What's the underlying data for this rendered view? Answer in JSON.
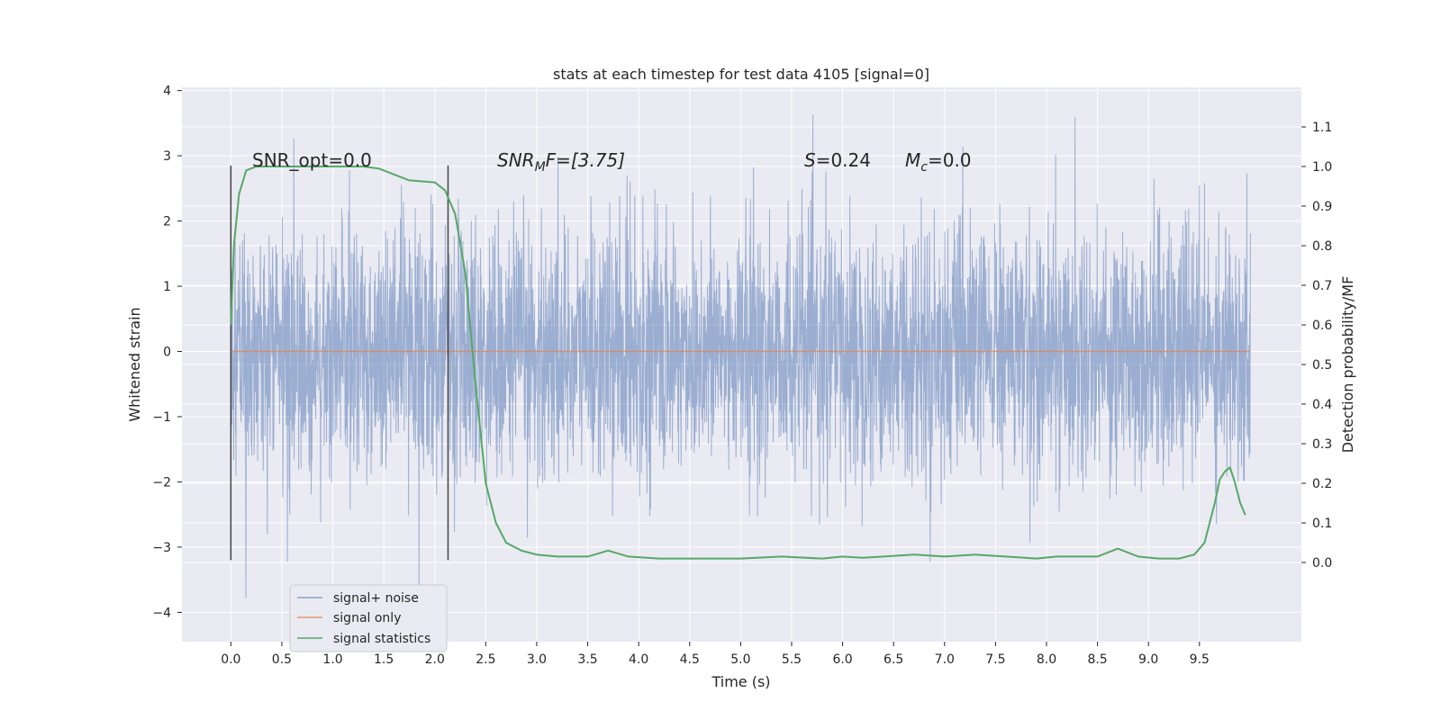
{
  "chart_data": {
    "type": "line",
    "title": "stats at each timestep for test data 4105 [signal=0]",
    "xlabel": "Time (s)",
    "ylabel_left": "Whitened strain",
    "ylabel_right": "Detection probability/MF",
    "xlim": [
      -0.48,
      10.5
    ],
    "ylim_left": [
      -4.45,
      4.05
    ],
    "ylim_right": [
      -0.2,
      1.2
    ],
    "x_ticks": [
      "0.0",
      "0.5",
      "1.0",
      "1.5",
      "2.0",
      "2.5",
      "3.0",
      "3.5",
      "4.0",
      "4.5",
      "5.0",
      "5.5",
      "6.0",
      "6.5",
      "7.0",
      "7.5",
      "8.0",
      "8.5",
      "9.0",
      "9.5"
    ],
    "y_left_ticks": [
      "4",
      "3",
      "2",
      "1",
      "0",
      "−1",
      "−2",
      "−3",
      "−4"
    ],
    "y_right_ticks": [
      "1.1",
      "1.0",
      "0.9",
      "0.8",
      "0.7",
      "0.6",
      "0.5",
      "0.4",
      "0.3",
      "0.2",
      "0.1",
      "0.0"
    ],
    "grid": true,
    "legend_position": "lower-left",
    "colors": {
      "background": "#eaeaf2",
      "grid": "#ffffff",
      "signal_noise": "#4c72b0",
      "signal_only": "#dd8452",
      "signal_statistics": "#55a868",
      "vlines": "#444444"
    },
    "annotations": {
      "snr_opt": "SNR_opt=0.0",
      "snr_mf_var": "SNR",
      "snr_mf_sub": "M",
      "snr_mf_rest": "F=[3.75]",
      "s_var": "S",
      "s_rest": "=0.24",
      "mc_var": "M",
      "mc_sub": "c",
      "mc_rest": "=0.0"
    },
    "vertical_lines_x": [
      0.0,
      2.13
    ],
    "series": [
      {
        "name": "signal+ noise",
        "x_range": [
          0.0,
          10.0
        ],
        "envelope_typical": [
          -1.6,
          1.7
        ],
        "extremes": [
          -4.05,
          3.7
        ]
      },
      {
        "name": "signal only",
        "x": [
          0.0,
          10.0
        ],
        "y": [
          0.0,
          0.0
        ]
      },
      {
        "name": "signal statistics",
        "axis": "right",
        "x": [
          0.0,
          0.03,
          0.08,
          0.15,
          0.25,
          0.5,
          1.0,
          1.3,
          1.45,
          1.6,
          1.75,
          2.0,
          2.1,
          2.2,
          2.3,
          2.4,
          2.5,
          2.6,
          2.7,
          2.85,
          3.0,
          3.2,
          3.5,
          3.7,
          3.9,
          4.2,
          4.6,
          5.0,
          5.4,
          5.8,
          6.0,
          6.2,
          6.4,
          6.7,
          7.0,
          7.3,
          7.6,
          7.9,
          8.1,
          8.3,
          8.5,
          8.7,
          8.9,
          9.1,
          9.3,
          9.45,
          9.55,
          9.6,
          9.65,
          9.7,
          9.75,
          9.8,
          9.85,
          9.9,
          9.95
        ],
        "y": [
          0.6,
          0.8,
          0.93,
          0.99,
          1.0,
          1.0,
          1.0,
          1.0,
          0.995,
          0.98,
          0.965,
          0.96,
          0.94,
          0.88,
          0.73,
          0.45,
          0.2,
          0.1,
          0.05,
          0.03,
          0.02,
          0.015,
          0.015,
          0.03,
          0.015,
          0.01,
          0.01,
          0.01,
          0.015,
          0.01,
          0.015,
          0.012,
          0.015,
          0.02,
          0.015,
          0.02,
          0.015,
          0.01,
          0.015,
          0.015,
          0.015,
          0.035,
          0.015,
          0.01,
          0.01,
          0.02,
          0.05,
          0.1,
          0.15,
          0.21,
          0.23,
          0.24,
          0.2,
          0.15,
          0.12
        ]
      }
    ]
  }
}
